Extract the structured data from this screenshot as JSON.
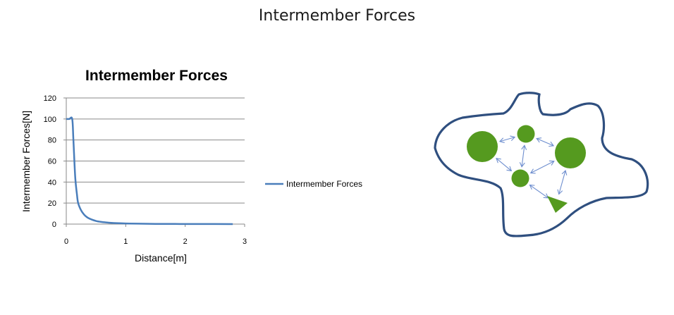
{
  "page": {
    "title": "Intermember Forces"
  },
  "chart_data": {
    "type": "line",
    "title": "Intermember Forces",
    "xlabel": "Distance[m]",
    "ylabel": "Intermember Forces[N]",
    "xlim": [
      0,
      3
    ],
    "ylim": [
      0,
      120
    ],
    "x_ticks": [
      "0",
      "1",
      "2",
      "3"
    ],
    "y_ticks": [
      "0",
      "20",
      "40",
      "60",
      "80",
      "100",
      "120"
    ],
    "grid": "horizontal",
    "legend": "right",
    "series": [
      {
        "name": "Intermember Forces",
        "color": "#4a7ebb",
        "x": [
          0,
          0.05,
          0.1,
          0.12,
          0.15,
          0.18,
          0.2,
          0.25,
          0.3,
          0.35,
          0.4,
          0.5,
          0.6,
          0.7,
          0.8,
          1.0,
          1.2,
          1.5,
          2.0,
          2.5,
          2.8
        ],
        "y": [
          100,
          100,
          100,
          80,
          45,
          28,
          20,
          13,
          9,
          6.5,
          5,
          3,
          2,
          1.4,
          1,
          0.6,
          0.4,
          0.2,
          0.1,
          0.05,
          0.03
        ]
      }
    ]
  },
  "diagram": {
    "colors": {
      "outline": "#2f4f7f",
      "member": "#559a1f",
      "arrow": "#6f8fcf"
    },
    "shapes": [
      "large-circle",
      "small-circle",
      "large-circle",
      "small-circle",
      "triangle"
    ]
  }
}
